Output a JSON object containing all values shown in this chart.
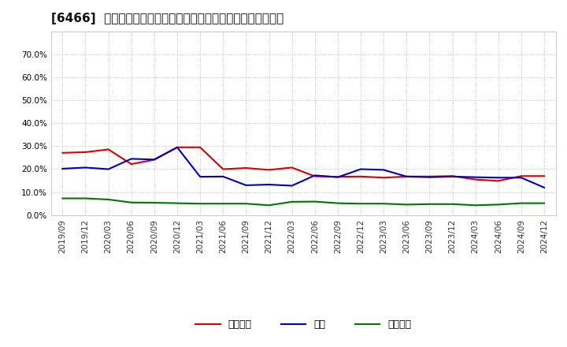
{
  "title": "[6466]  売上債権、在庫、買入債務の総資産に対する比率の推移",
  "dates": [
    "2019/09",
    "2019/12",
    "2020/03",
    "2020/06",
    "2020/09",
    "2020/12",
    "2021/03",
    "2021/06",
    "2021/09",
    "2021/12",
    "2022/03",
    "2022/06",
    "2022/09",
    "2022/12",
    "2023/03",
    "2023/06",
    "2023/09",
    "2023/12",
    "2024/03",
    "2024/06",
    "2024/09",
    "2024/12"
  ],
  "uriagedeken": [
    0.271,
    0.274,
    0.286,
    0.222,
    0.241,
    0.295,
    0.295,
    0.2,
    0.205,
    0.197,
    0.207,
    0.169,
    0.167,
    0.168,
    0.163,
    0.168,
    0.168,
    0.17,
    0.155,
    0.149,
    0.17,
    0.17
  ],
  "zaiko": [
    0.202,
    0.207,
    0.2,
    0.245,
    0.242,
    0.295,
    0.167,
    0.168,
    0.13,
    0.133,
    0.128,
    0.173,
    0.165,
    0.2,
    0.197,
    0.168,
    0.165,
    0.168,
    0.165,
    0.163,
    0.163,
    0.12
  ],
  "kaiiredemu": [
    0.073,
    0.073,
    0.068,
    0.055,
    0.054,
    0.052,
    0.05,
    0.05,
    0.05,
    0.043,
    0.058,
    0.059,
    0.052,
    0.05,
    0.05,
    0.046,
    0.048,
    0.048,
    0.043,
    0.046,
    0.052,
    0.052
  ],
  "legend_labels": [
    "売上債権",
    "在庫",
    "買入債務"
  ],
  "line_colors": [
    "#dd0000",
    "#0000cc",
    "#007700"
  ],
  "ylim": [
    0.0,
    0.8
  ],
  "yticks": [
    0.0,
    0.1,
    0.2,
    0.3,
    0.4,
    0.5,
    0.6,
    0.7
  ],
  "bg_color": "#ffffff",
  "plot_bg_color": "#ffffff",
  "grid_color": "#999999",
  "title_fontsize": 11,
  "axis_fontsize": 7.5,
  "legend_fontsize": 9
}
